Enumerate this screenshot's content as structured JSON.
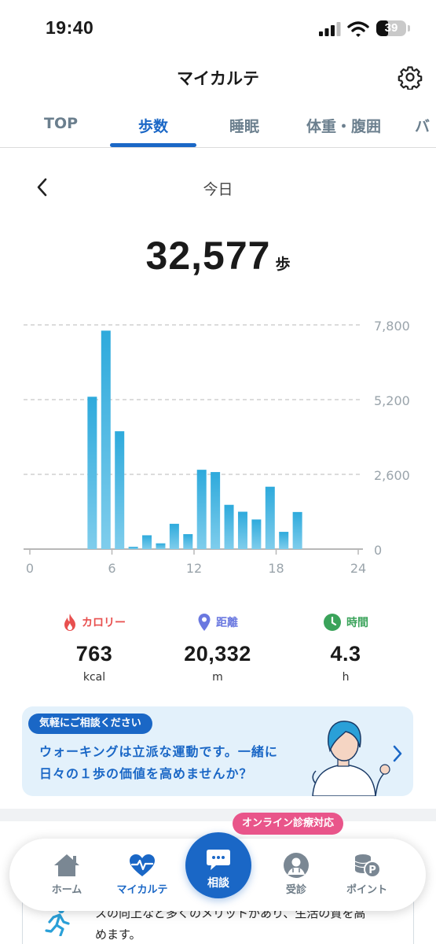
{
  "status_bar": {
    "time": "19:40",
    "battery": "39",
    "battery_level": 0.39
  },
  "header": {
    "title": "マイカルテ",
    "settings_icon": "gear-icon"
  },
  "tabs": [
    {
      "label": "TOP",
      "active": false
    },
    {
      "label": "歩数",
      "active": true
    },
    {
      "label": "睡眠",
      "active": false
    },
    {
      "label": "体重・腹囲",
      "active": false
    },
    {
      "label": "バ",
      "active": false
    }
  ],
  "date_nav": {
    "label": "今日",
    "back_icon": "chevron-left-icon"
  },
  "steps": {
    "value": "32,577",
    "unit": "歩"
  },
  "chart_data": {
    "type": "bar",
    "x": [
      0,
      1,
      2,
      3,
      4,
      5,
      6,
      7,
      8,
      9,
      10,
      11,
      12,
      13,
      14,
      15,
      16,
      17,
      18,
      19,
      20,
      21,
      22,
      23
    ],
    "values": [
      0,
      0,
      0,
      0,
      5300,
      7600,
      4100,
      80,
      480,
      200,
      880,
      520,
      2760,
      2680,
      1540,
      1300,
      1030,
      2170,
      600,
      1290,
      0,
      0,
      0,
      0
    ],
    "xticks": [
      "0",
      "6",
      "12",
      "18",
      "24"
    ],
    "yticks": [
      "0",
      "2,600",
      "5,200",
      "7,800"
    ],
    "ylim": [
      0,
      7800
    ],
    "xlim": [
      0,
      24
    ],
    "grid": "dashed horizontal",
    "bar_color": "#2eaadc"
  },
  "metrics": [
    {
      "label": "カロリー",
      "value": "763",
      "unit": "kcal",
      "icon": "flame-icon",
      "color": "#e8504f"
    },
    {
      "label": "距離",
      "value": "20,332",
      "unit": "m",
      "icon": "location-pin-icon",
      "color": "#6a78e0"
    },
    {
      "label": "時間",
      "value": "4.3",
      "unit": "h",
      "icon": "clock-icon",
      "color": "#3aa35a"
    }
  ],
  "banner": {
    "badge": "気軽にご相談ください",
    "line1": "ウォーキングは立派な運動です。一緒に",
    "line2": "日々の１歩の価値を高めませんか？"
  },
  "lower": {
    "line1": "スの向上など多くのメリットがあり、生活の質を高",
    "line2": "めます。"
  },
  "nav": {
    "online_badge": "オンライン診療対応",
    "items": [
      {
        "label": "ホーム",
        "icon": "home-icon",
        "active": false
      },
      {
        "label": "マイカルテ",
        "icon": "heart-pulse-icon",
        "active": true
      },
      {
        "label": "相談",
        "icon": "chat-bubble-icon",
        "active": false
      },
      {
        "label": "受診",
        "icon": "doctor-icon",
        "active": false
      },
      {
        "label": "ポイント",
        "icon": "coin-points-icon",
        "active": false
      }
    ]
  }
}
